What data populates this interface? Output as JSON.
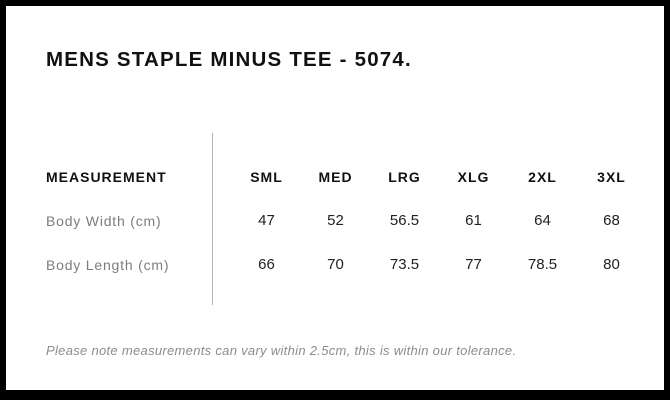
{
  "page": {
    "title": "MENS STAPLE MINUS TEE - 5074.",
    "note": "Please note measurements can vary within 2.5cm, this is within our tolerance."
  },
  "size_chart": {
    "measurement_header": "MEASUREMENT",
    "sizes": [
      "SML",
      "MED",
      "LRG",
      "XLG",
      "2XL",
      "3XL"
    ],
    "rows": [
      {
        "label": "Body Width (cm)",
        "values": [
          "47",
          "52",
          "56.5",
          "61",
          "64",
          "68"
        ]
      },
      {
        "label": "Body Length (cm)",
        "values": [
          "66",
          "70",
          "73.5",
          "77",
          "78.5",
          "80"
        ]
      }
    ]
  },
  "colors": {
    "border": "#000000",
    "background": "#ffffff",
    "title_text": "#111111",
    "header_text": "#111111",
    "row_label_text": "#7d7d7d",
    "value_text": "#222222",
    "divider": "#b5b5b5",
    "note_text": "#8c8c8c"
  }
}
